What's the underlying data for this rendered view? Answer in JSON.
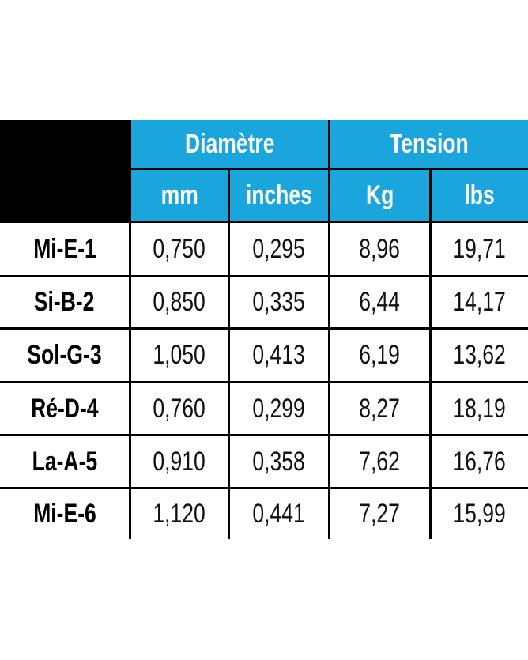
{
  "table": {
    "header": {
      "groups": [
        "Diamètre",
        "Tension"
      ],
      "columns": [
        "mm",
        "inches",
        "Kg",
        "lbs"
      ]
    },
    "rows": [
      [
        "Mi-E-1",
        "0,750",
        "0,295",
        "8,96",
        "19,71"
      ],
      [
        "Si-B-2",
        "0,850",
        "0,335",
        "6,44",
        "14,17"
      ],
      [
        "Sol-G-3",
        "1,050",
        "0,413",
        "6,19",
        "13,62"
      ],
      [
        "Ré-D-4",
        "0,760",
        "0,299",
        "8,27",
        "18,19"
      ],
      [
        "La-A-5",
        "0,910",
        "0,358",
        "7,62",
        "16,76"
      ],
      [
        "Mi-E-6",
        "1,120",
        "0,441",
        "7,27",
        "15,99"
      ]
    ]
  }
}
